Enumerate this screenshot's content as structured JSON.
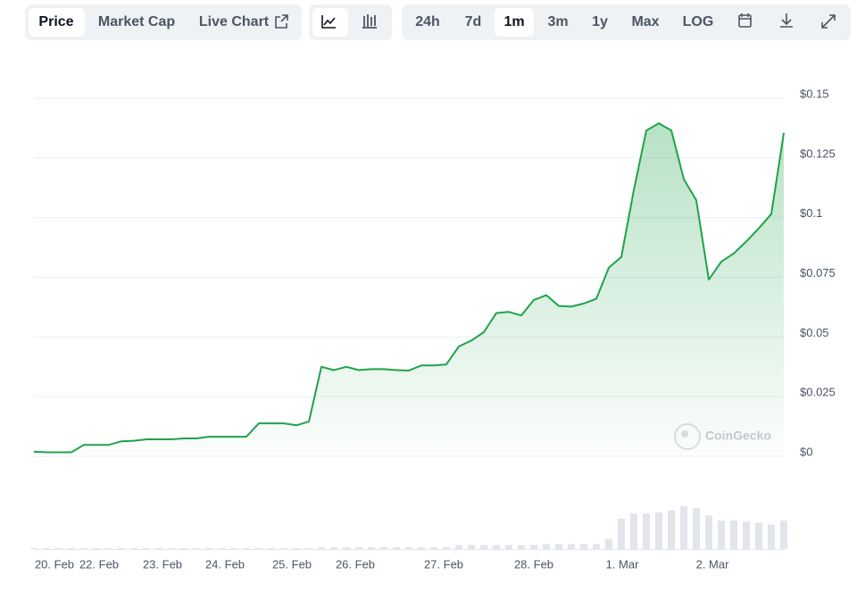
{
  "toolbar": {
    "tabs": [
      "Price",
      "Market Cap",
      "Live Chart"
    ],
    "active_tab": "Price",
    "ranges": [
      "24h",
      "7d",
      "1m",
      "3m",
      "1y",
      "Max",
      "LOG"
    ],
    "active_range": "1m"
  },
  "chart_data": {
    "type": "line",
    "color": "#1fa34a",
    "values": [
      0.0004,
      0.0002,
      0.0002,
      0.0002,
      0.0033,
      0.0033,
      0.0033,
      0.0048,
      0.005,
      0.0056,
      0.0056,
      0.0056,
      0.006,
      0.006,
      0.0067,
      0.0067,
      0.0067,
      0.0067,
      0.0123,
      0.0123,
      0.0123,
      0.0115,
      0.013,
      0.036,
      0.0346,
      0.036,
      0.0346,
      0.035,
      0.035,
      0.0346,
      0.0344,
      0.0366,
      0.0366,
      0.037,
      0.0445,
      0.047,
      0.0505,
      0.0585,
      0.059,
      0.0575,
      0.064,
      0.066,
      0.0615,
      0.0612,
      0.0625,
      0.0645,
      0.0775,
      0.082,
      0.11,
      0.135,
      0.138,
      0.135,
      0.1146,
      0.1057,
      0.0725,
      0.08,
      0.0835,
      0.0885,
      0.094,
      0.1,
      0.134
    ],
    "volume": [
      1,
      1,
      1,
      1,
      1,
      1,
      1,
      1,
      1,
      1,
      1,
      1,
      1,
      1,
      1,
      1,
      1,
      1,
      1,
      1,
      1,
      1,
      1,
      2,
      2,
      2,
      2,
      2,
      2,
      2,
      2,
      2,
      2,
      2,
      4,
      4,
      4,
      4,
      4,
      4,
      4,
      5,
      5,
      5,
      5,
      5,
      10,
      30,
      35,
      35,
      36,
      38,
      42,
      40,
      33,
      28,
      28,
      27,
      26,
      24,
      28
    ],
    "xtick_labels": [
      "20. Feb",
      "22. Feb",
      "23. Feb",
      "24. Feb",
      "25. Feb",
      "26. Feb",
      "27. Feb",
      "28. Feb",
      "1. Mar",
      "2. Mar"
    ],
    "ylim": [
      0,
      0.15
    ],
    "yticks": [
      {
        "value": 0,
        "label": "$0"
      },
      {
        "value": 0.025,
        "label": "$0.025"
      },
      {
        "value": 0.05,
        "label": "$0.05"
      },
      {
        "value": 0.075,
        "label": "$0.075"
      },
      {
        "value": 0.1,
        "label": "$0.1"
      },
      {
        "value": 0.125,
        "label": "$0.125"
      },
      {
        "value": 0.15,
        "label": "$0.15"
      }
    ],
    "grid": true,
    "watermark": "CoinGecko"
  }
}
